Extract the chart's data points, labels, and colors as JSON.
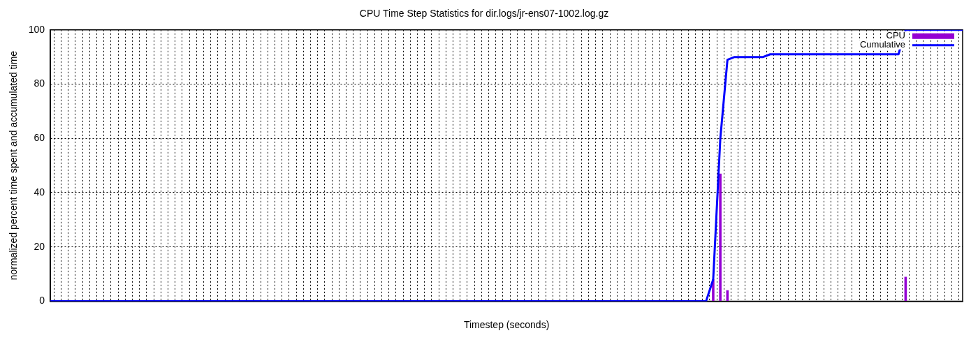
{
  "chart_data": {
    "type": "bar",
    "title": "CPU Time Step Statistics for dir.logs/jr-ens07-1002.log.gz",
    "xlabel": "Timestep (seconds)",
    "ylabel": "normalized percent time spent and accumulated time",
    "categories": [
      null,
      null,
      null,
      null,
      null,
      null,
      null,
      null,
      null,
      null,
      null,
      null,
      null,
      null,
      null,
      null,
      null,
      null,
      null,
      null,
      null,
      null,
      null,
      null,
      null,
      null,
      null,
      null,
      null,
      null,
      null,
      null,
      null,
      null,
      null,
      null,
      null,
      null,
      null,
      null,
      null,
      null,
      null,
      null,
      null,
      null,
      null,
      null,
      null,
      null,
      null,
      null,
      null,
      null,
      null,
      null,
      null,
      null,
      null,
      null,
      null,
      null,
      null,
      null,
      null,
      null,
      null,
      null,
      null,
      null,
      null,
      null,
      null,
      null,
      null,
      null,
      null,
      null,
      null,
      null,
      null,
      null,
      null,
      null,
      null,
      null,
      null,
      null,
      null,
      null,
      null,
      null,
      null,
      null,
      null,
      null,
      null,
      null,
      null,
      null,
      null,
      null,
      null,
      null,
      null,
      null,
      null,
      null,
      null,
      null,
      null,
      null,
      null,
      null,
      null,
      null,
      null,
      null,
      null,
      null,
      null,
      null,
      null,
      null,
      null,
      null,
      null,
      null,
      null
    ],
    "series": [
      {
        "name": "CPU",
        "color": "#9400d3",
        "values": [
          0,
          0,
          0,
          0,
          0,
          0,
          0,
          0,
          0,
          0,
          0,
          0,
          0,
          0,
          0,
          0,
          0,
          0,
          0,
          0,
          0,
          0,
          0,
          0,
          0,
          0,
          0,
          0,
          0,
          0,
          0,
          0,
          0,
          0,
          0,
          0,
          0,
          0,
          0,
          0,
          0,
          0,
          0,
          0,
          0,
          0,
          0,
          0,
          0,
          0,
          0,
          0,
          0,
          0,
          0,
          0,
          0,
          0,
          0,
          0,
          0,
          0,
          0,
          0,
          0,
          0,
          0,
          0,
          0,
          0,
          0,
          0,
          0,
          0,
          0,
          0,
          0,
          0,
          0,
          0,
          0,
          0,
          0,
          0,
          0,
          0,
          0,
          0,
          0,
          0,
          0,
          0,
          0,
          8,
          47,
          4,
          0,
          0,
          0,
          0,
          0,
          0,
          0,
          0,
          0,
          0,
          0,
          0,
          0,
          0,
          0,
          0,
          0,
          0,
          0,
          0,
          0,
          0,
          0,
          0,
          9,
          0,
          0,
          0,
          0,
          0,
          0,
          0,
          0
        ]
      },
      {
        "name": "Cumulative",
        "type": "line",
        "color": "#0000ff",
        "values": [
          0,
          0,
          0,
          0,
          0,
          0,
          0,
          0,
          0,
          0,
          0,
          0,
          0,
          0,
          0,
          0,
          0,
          0,
          0,
          0,
          0,
          0,
          0,
          0,
          0,
          0,
          0,
          0,
          0,
          0,
          0,
          0,
          0,
          0,
          0,
          0,
          0,
          0,
          0,
          0,
          0,
          0,
          0,
          0,
          0,
          0,
          0,
          0,
          0,
          0,
          0,
          0,
          0,
          0,
          0,
          0,
          0,
          0,
          0,
          0,
          0,
          0,
          0,
          0,
          0,
          0,
          0,
          0,
          0,
          0,
          0,
          0,
          0,
          0,
          0,
          0,
          0,
          0,
          0,
          0,
          0,
          0,
          0,
          0,
          0,
          0,
          0,
          0,
          0,
          0,
          0,
          0,
          0,
          8,
          60,
          89,
          90,
          90,
          90,
          90,
          90,
          91,
          91,
          91,
          91,
          91,
          91,
          91,
          91,
          91,
          91,
          91,
          91,
          91,
          91,
          91,
          91,
          91,
          91,
          91,
          100,
          100,
          100,
          100,
          100,
          100,
          100,
          100,
          100
        ]
      }
    ],
    "ylim": [
      0,
      100
    ],
    "yticks": [
      0,
      20,
      40,
      60,
      80,
      100
    ],
    "grid": true,
    "legend": "top right"
  }
}
